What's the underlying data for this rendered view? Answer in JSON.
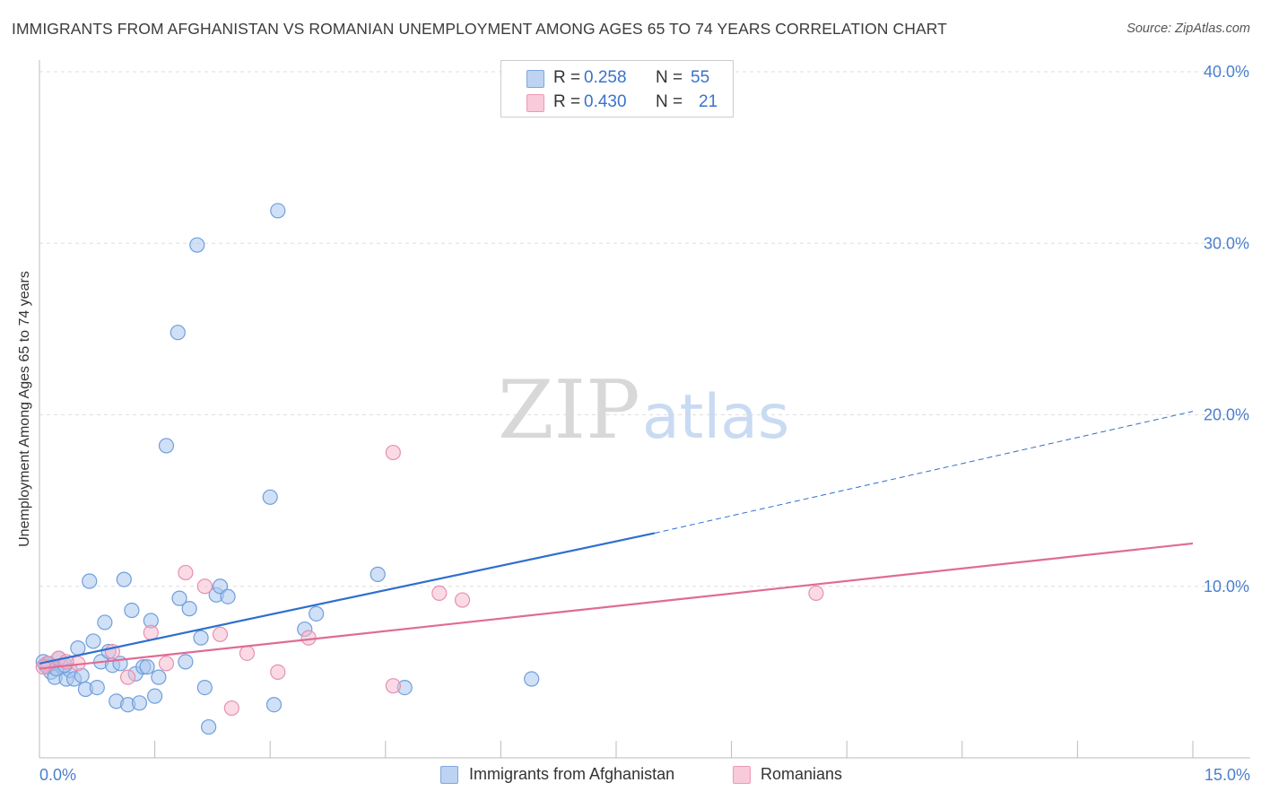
{
  "title": "IMMIGRANTS FROM AFGHANISTAN VS ROMANIAN UNEMPLOYMENT AMONG AGES 65 TO 74 YEARS CORRELATION CHART",
  "source": "Source: ZipAtlas.com",
  "watermark": {
    "zip": "ZIP",
    "atlas": "atlas"
  },
  "legend": {
    "rows": [
      {
        "r_label": "R =",
        "r_value": "0.258",
        "n_label": "N =",
        "n_value": "55"
      },
      {
        "r_label": "R =",
        "r_value": "0.430",
        "n_label": "N =",
        "n_value": "21"
      }
    ]
  },
  "bottom_legend": {
    "series1": "Immigrants from Afghanistan",
    "series2": "Romanians"
  },
  "colors": {
    "blue_fill": "#a9c6ee",
    "blue_stroke": "#6f9fdc",
    "blue_line": "#2e6fce",
    "pink_fill": "#f6b8cb",
    "pink_stroke": "#e98fae",
    "pink_line": "#e06b95",
    "grid": "#dedede",
    "axis_text": "#4a7fce"
  },
  "chart_data": {
    "type": "scatter",
    "title": "IMMIGRANTS FROM AFGHANISTAN VS ROMANIAN UNEMPLOYMENT AMONG AGES 65 TO 74 YEARS CORRELATION CHART",
    "xlabel": "",
    "ylabel": "Unemployment Among Ages 65 to 74 years",
    "xlim": [
      0,
      15
    ],
    "ylim": [
      0,
      40
    ],
    "x_tick_labels": [
      "0.0%",
      "15.0%"
    ],
    "y_ticks": [
      10,
      20,
      30,
      40
    ],
    "y_tick_labels": [
      "10.0%",
      "20.0%",
      "30.0%",
      "40.0%"
    ],
    "series": [
      {
        "name": "Immigrants from Afghanistan",
        "R": 0.258,
        "N": 55,
        "points": [
          [
            0.05,
            5.6
          ],
          [
            0.08,
            5.4
          ],
          [
            0.1,
            5.3
          ],
          [
            0.15,
            5.0
          ],
          [
            0.2,
            4.7
          ],
          [
            0.25,
            5.8
          ],
          [
            0.3,
            5.3
          ],
          [
            0.35,
            4.6
          ],
          [
            0.4,
            5.1
          ],
          [
            0.45,
            4.6
          ],
          [
            0.5,
            6.4
          ],
          [
            0.55,
            4.8
          ],
          [
            0.6,
            4.0
          ],
          [
            0.65,
            10.3
          ],
          [
            0.7,
            6.8
          ],
          [
            0.75,
            4.1
          ],
          [
            0.8,
            5.6
          ],
          [
            0.85,
            7.9
          ],
          [
            0.9,
            6.2
          ],
          [
            0.95,
            5.4
          ],
          [
            1.0,
            3.3
          ],
          [
            1.05,
            5.5
          ],
          [
            1.1,
            10.4
          ],
          [
            1.15,
            3.1
          ],
          [
            1.2,
            8.6
          ],
          [
            1.25,
            4.9
          ],
          [
            1.3,
            3.2
          ],
          [
            1.35,
            5.3
          ],
          [
            1.4,
            5.3
          ],
          [
            1.45,
            8.0
          ],
          [
            1.5,
            3.6
          ],
          [
            1.55,
            4.7
          ],
          [
            1.65,
            18.2
          ],
          [
            1.8,
            24.8
          ],
          [
            1.82,
            9.3
          ],
          [
            1.9,
            5.6
          ],
          [
            1.95,
            8.7
          ],
          [
            2.05,
            29.9
          ],
          [
            2.1,
            7.0
          ],
          [
            2.15,
            4.1
          ],
          [
            2.2,
            1.8
          ],
          [
            2.3,
            9.5
          ],
          [
            2.35,
            10.0
          ],
          [
            2.45,
            9.4
          ],
          [
            3.0,
            15.2
          ],
          [
            3.05,
            3.1
          ],
          [
            3.1,
            31.9
          ],
          [
            3.45,
            7.5
          ],
          [
            3.6,
            8.4
          ],
          [
            4.4,
            10.7
          ],
          [
            4.75,
            4.1
          ],
          [
            6.4,
            4.6
          ],
          [
            0.12,
            5.5
          ],
          [
            0.22,
            5.2
          ],
          [
            0.33,
            5.4
          ]
        ]
      },
      {
        "name": "Romanians",
        "R": 0.43,
        "N": 21,
        "points": [
          [
            0.1,
            5.5
          ],
          [
            0.25,
            5.8
          ],
          [
            0.5,
            5.5
          ],
          [
            0.95,
            6.2
          ],
          [
            1.15,
            4.7
          ],
          [
            1.45,
            7.3
          ],
          [
            1.65,
            5.5
          ],
          [
            1.9,
            10.8
          ],
          [
            2.15,
            10.0
          ],
          [
            2.35,
            7.2
          ],
          [
            2.5,
            2.9
          ],
          [
            2.7,
            6.1
          ],
          [
            3.1,
            5.0
          ],
          [
            3.5,
            7.0
          ],
          [
            4.6,
            4.2
          ],
          [
            4.6,
            17.8
          ],
          [
            5.2,
            9.6
          ],
          [
            5.5,
            9.2
          ],
          [
            10.1,
            9.6
          ],
          [
            0.05,
            5.3
          ],
          [
            0.35,
            5.6
          ]
        ]
      }
    ],
    "trend_lines": [
      {
        "series": "Immigrants from Afghanistan",
        "x": [
          0,
          8.0
        ],
        "y": [
          5.5,
          13.1
        ],
        "dashed_extension": {
          "x": [
            8.0,
            15.0
          ],
          "y": [
            13.1,
            20.2
          ]
        }
      },
      {
        "series": "Romanians",
        "x": [
          0,
          15.0
        ],
        "y": [
          5.2,
          12.5
        ]
      }
    ]
  }
}
